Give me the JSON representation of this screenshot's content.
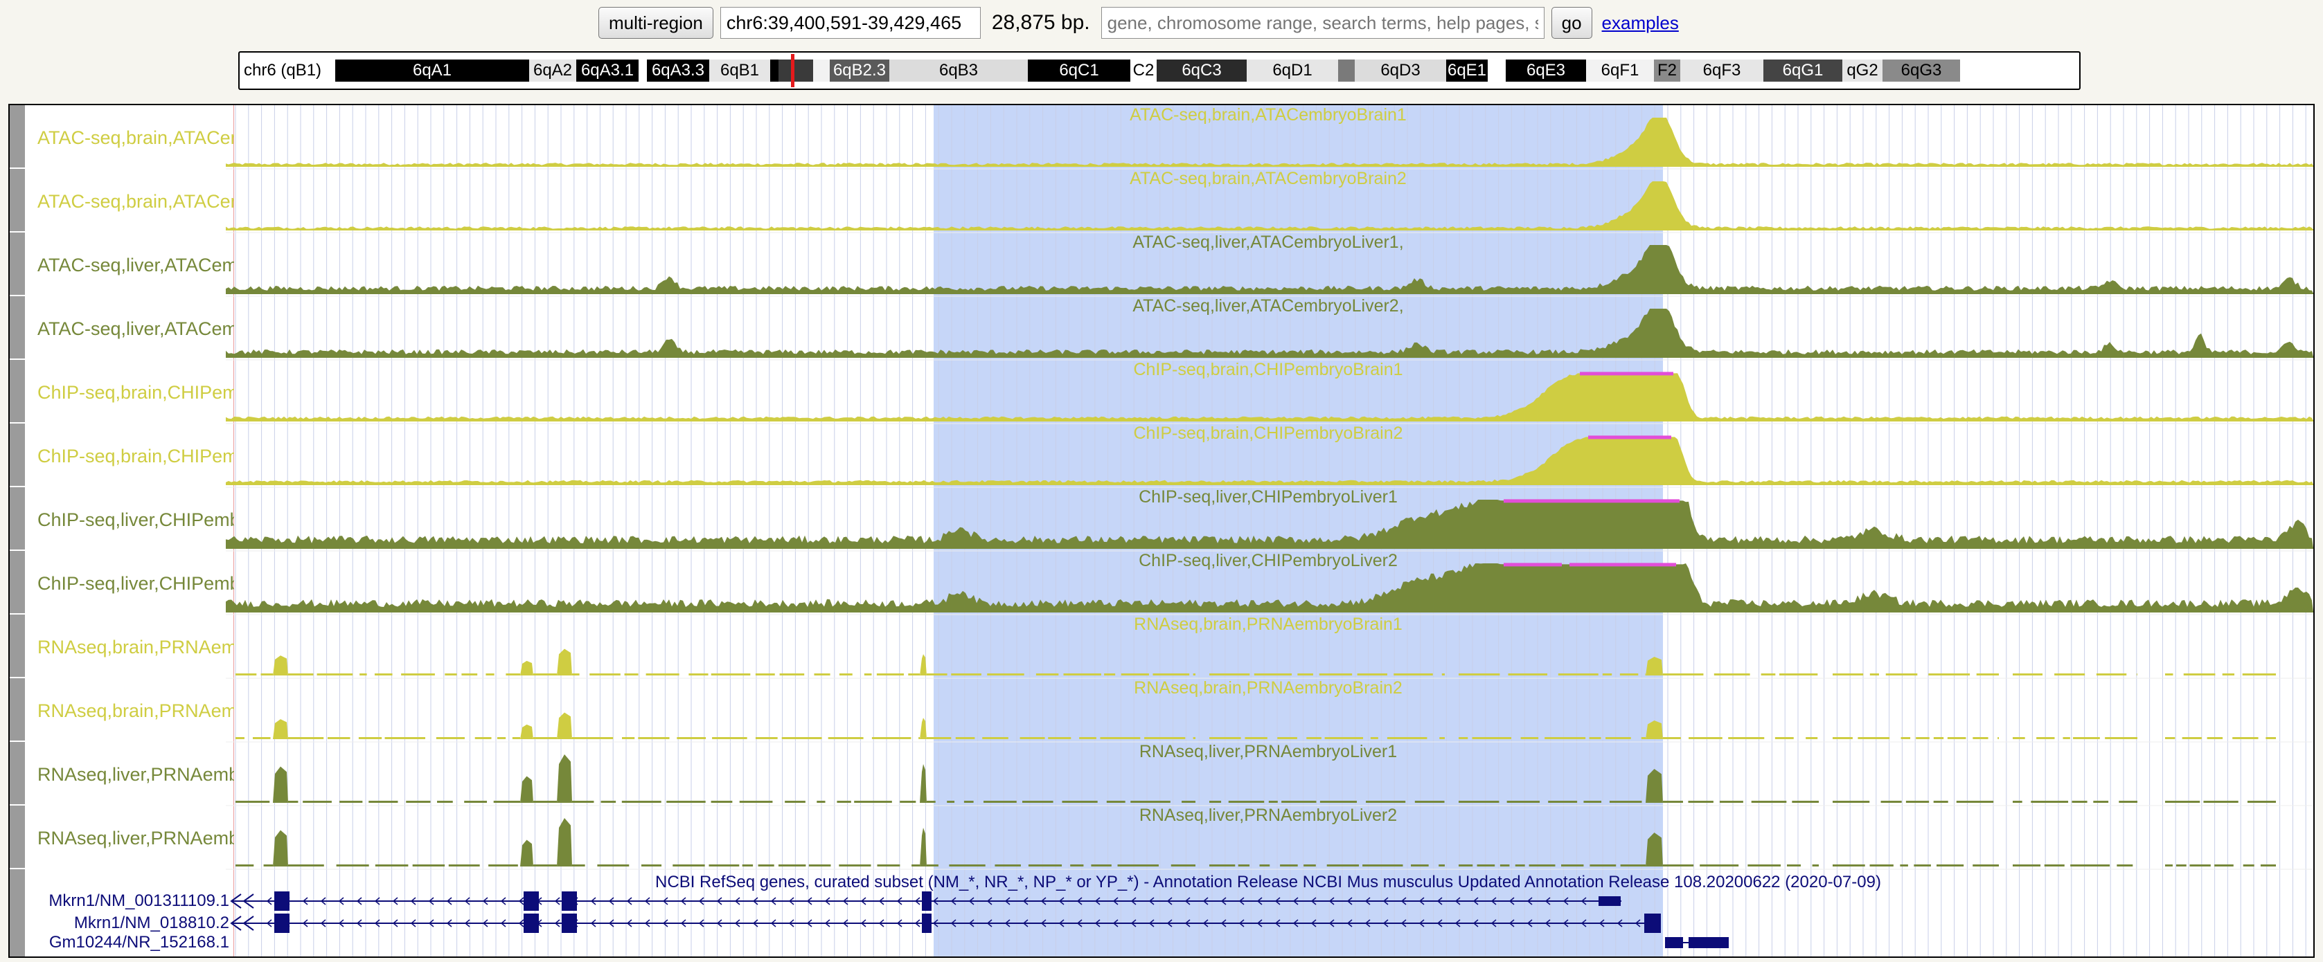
{
  "nav": {
    "multi_region_label": "multi-region",
    "position": "chr6:39,400,591-39,429,465",
    "size_text": "28,875 bp.",
    "search_placeholder": "gene, chromosome range, search terms, help pages, see examples",
    "go_label": "go",
    "examples_label": "examples"
  },
  "ideogram": {
    "chromosome_label": "chr6 (qB1)",
    "bands": [
      {
        "name": "6qA1",
        "color": "#000000",
        "text": "#ffffff"
      },
      {
        "name": "6qA2",
        "color": "#e6e6e6",
        "text": "#000000"
      },
      {
        "name": "6qA3.1",
        "color": "#000000",
        "text": "#ffffff"
      },
      {
        "name": "",
        "color": "#ffffff",
        "text": "#000000"
      },
      {
        "name": "6qA3.3",
        "color": "#000000",
        "text": "#ffffff"
      },
      {
        "name": "6qB1",
        "color": "#e6e6e6",
        "text": "#000000"
      },
      {
        "name": "",
        "color": "#000000",
        "text": "#ffffff"
      },
      {
        "name": "",
        "color": "#3a3a3a",
        "text": "#ffffff"
      },
      {
        "name": "",
        "color": "#f2f2f2",
        "text": "#000000"
      },
      {
        "name": "6qB2.3",
        "color": "#5a5a5a",
        "text": "#ffffff"
      },
      {
        "name": "6qB3",
        "color": "#dcdcdc",
        "text": "#000000"
      },
      {
        "name": "6qC1",
        "color": "#000000",
        "text": "#ffffff"
      },
      {
        "name": "C2",
        "color": "#ffffff",
        "text": "#000000"
      },
      {
        "name": "6qC3",
        "color": "#2a2a2a",
        "text": "#ffffff"
      },
      {
        "name": "6qD1",
        "color": "#e6e6e6",
        "text": "#000000"
      },
      {
        "name": "",
        "color": "#7a7a7a",
        "text": "#ffffff"
      },
      {
        "name": "6qD3",
        "color": "#dcdcdc",
        "text": "#000000"
      },
      {
        "name": "6qE1",
        "color": "#000000",
        "text": "#ffffff"
      },
      {
        "name": "",
        "color": "#ffffff",
        "text": "#000000"
      },
      {
        "name": "6qE3",
        "color": "#000000",
        "text": "#ffffff"
      },
      {
        "name": "6qF1",
        "color": "#f2f2f2",
        "text": "#000000"
      },
      {
        "name": "F2",
        "color": "#8a8a8a",
        "text": "#000000"
      },
      {
        "name": "6qF3",
        "color": "#e6e6e6",
        "text": "#000000"
      },
      {
        "name": "6qG1",
        "color": "#444444",
        "text": "#ffffff"
      },
      {
        "name": "qG2",
        "color": "#e6e6e6",
        "text": "#000000"
      },
      {
        "name": "6qG3",
        "color": "#8a8a8a",
        "text": "#000000"
      }
    ]
  },
  "highlight_color": "#c6d6f8",
  "colors": {
    "brain": "#cfcd42",
    "liver": "#76883a",
    "peak_bar": "#e24ed8",
    "gene": "#0c0c78"
  },
  "tracks": [
    {
      "short": "ATAC-seq,brain,ATACembryoBrain1",
      "center": "ATAC-seq,brain,ATACembryoBrain1",
      "color": "brain",
      "kind": "atac"
    },
    {
      "short": "ATAC-seq,brain,ATACembryoBrain2",
      "center": "ATAC-seq,brain,ATACembryoBrain2",
      "color": "brain",
      "kind": "atac"
    },
    {
      "short": "ATAC-seq,liver,ATACembryoLiver1",
      "center": "ATAC-seq,liver,ATACembryoLiver1,",
      "color": "liver",
      "kind": "atac"
    },
    {
      "short": "ATAC-seq,liver,ATACembryoLiver2",
      "center": "ATAC-seq,liver,ATACembryoLiver2,",
      "color": "liver",
      "kind": "atac"
    },
    {
      "short": "ChIP-seq,brain,CHIPembryoBrain1",
      "center": "ChIP-seq,brain,CHIPembryoBrain1",
      "color": "brain",
      "kind": "chip"
    },
    {
      "short": "ChIP-seq,brain,CHIPembryoBrain2",
      "center": "ChIP-seq,brain,CHIPembryoBrain2",
      "color": "brain",
      "kind": "chip"
    },
    {
      "short": "ChIP-seq,liver,CHIPembryoLiver1",
      "center": "ChIP-seq,liver,CHIPembryoLiver1",
      "color": "liver",
      "kind": "chip"
    },
    {
      "short": "ChIP-seq,liver,CHIPembryoLiver2",
      "center": "ChIP-seq,liver,CHIPembryoLiver2",
      "color": "liver",
      "kind": "chip"
    },
    {
      "short": "RNAseq,brain,PRNAembryoBrain1",
      "center": "RNAseq,brain,PRNAembryoBrain1",
      "color": "brain",
      "kind": "rna"
    },
    {
      "short": "RNAseq,brain,PRNAembryoBrain2",
      "center": "RNAseq,brain,PRNAembryoBrain2",
      "color": "brain",
      "kind": "rna"
    },
    {
      "short": "RNAseq,liver,PRNAembryoLiver1",
      "center": "RNAseq,liver,PRNAembryoLiver1",
      "color": "liver",
      "kind": "rna"
    },
    {
      "short": "RNAseq,liver,PRNAembryoLiver2",
      "center": "RNAseq,liver,PRNAembryoLiver2",
      "color": "liver",
      "kind": "rna"
    }
  ],
  "genes": {
    "title": "NCBI RefSeq genes, curated subset (NM_*, NR_*, NP_* or YP_*) - Annotation Release NCBI Mus musculus Updated Annotation Release 108.20200622 (2020-07-09)",
    "items": [
      {
        "label": "Mkrn1/NM_001311109.1"
      },
      {
        "label": "Mkrn1/NM_018810.2"
      },
      {
        "label": "Gm10244/NR_152168.1"
      }
    ]
  }
}
